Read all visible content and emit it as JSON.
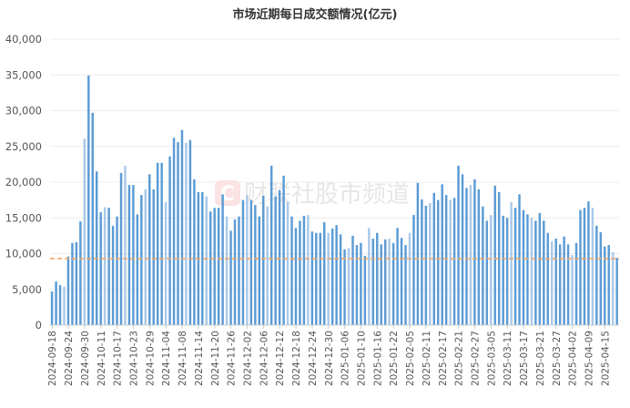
{
  "chart_data": {
    "type": "bar",
    "title": "市场近期每日成交额情况(亿元)",
    "xlabel": "",
    "ylabel": "",
    "ylim": [
      0,
      40000
    ],
    "yticks": [
      0,
      5000,
      10000,
      15000,
      20000,
      25000,
      30000,
      35000,
      40000
    ],
    "ytick_labels": [
      "0",
      "5,000",
      "10,000",
      "15,000",
      "20,000",
      "25,000",
      "30,000",
      "35,000",
      "40,000"
    ],
    "grid": true,
    "tick_every_n_bars": 4,
    "tick_labels": [
      "2024-09-18",
      "2024-09-24",
      "2024-09-30",
      "2024-10-11",
      "2024-10-17",
      "2024-10-23",
      "2024-10-29",
      "2024-11-04",
      "2024-11-08",
      "2024-11-14",
      "2024-11-20",
      "2024-11-26",
      "2024-12-02",
      "2024-12-06",
      "2024-12-12",
      "2024-12-18",
      "2024-12-24",
      "2024-12-30",
      "2025-01-06",
      "2025-01-10",
      "2025-01-16",
      "2025-01-22",
      "2025-02-05",
      "2025-02-11",
      "2025-02-17",
      "2025-02-21",
      "2025-02-27",
      "2025-03-05",
      "2025-03-11",
      "2025-03-17",
      "2025-03-21",
      "2025-03-27",
      "2025-04-02",
      "2025-04-09",
      "2025-04-15"
    ],
    "series": [
      {
        "name": "成交额",
        "color": "#5B9BD5",
        "values": [
          4700,
          6100,
          5600,
          5400,
          9600,
          11500,
          11600,
          14500,
          26100,
          34900,
          29700,
          21500,
          15800,
          16500,
          16400,
          13900,
          15200,
          21300,
          22300,
          19600,
          19600,
          15500,
          18200,
          19000,
          21100,
          19000,
          22700,
          22700,
          17200,
          23600,
          26200,
          25600,
          27300,
          25500,
          25900,
          20400,
          18600,
          18600,
          18000,
          15900,
          16400,
          16400,
          18300,
          15200,
          13200,
          14800,
          15200,
          17500,
          18200,
          17500,
          16800,
          15200,
          18100,
          16600,
          22300,
          18000,
          18900,
          20900,
          17200,
          15200,
          13600,
          14600,
          15300,
          15400,
          13100,
          12900,
          12900,
          14400,
          12900,
          13500,
          14000,
          12700,
          10600,
          10800,
          12500,
          11200,
          11500,
          9700,
          13600,
          12100,
          12900,
          11300,
          12000,
          12100,
          11500,
          13600,
          12200,
          11200,
          12900,
          15400,
          19900,
          17600,
          16700,
          17100,
          18500,
          17500,
          19700,
          18200,
          17500,
          17800,
          22300,
          21100,
          19200,
          19600,
          20400,
          19000,
          16600,
          14600,
          15400,
          19500,
          18600,
          15300,
          15000,
          17200,
          16400,
          18300,
          16100,
          15500,
          15000,
          14600,
          15700,
          14600,
          12900,
          11700,
          12100,
          11300,
          12400,
          11300,
          9800,
          11500,
          16100,
          16400,
          17300,
          16400,
          13900,
          13000,
          11000,
          11200,
          10200,
          9400
        ]
      },
      {
        "name": "平均线",
        "type": "line",
        "style": "dashed",
        "color": "#F4A460",
        "value": 9300
      }
    ]
  },
  "watermark": {
    "text": "财联社股市频道",
    "logo_letter": "C"
  }
}
